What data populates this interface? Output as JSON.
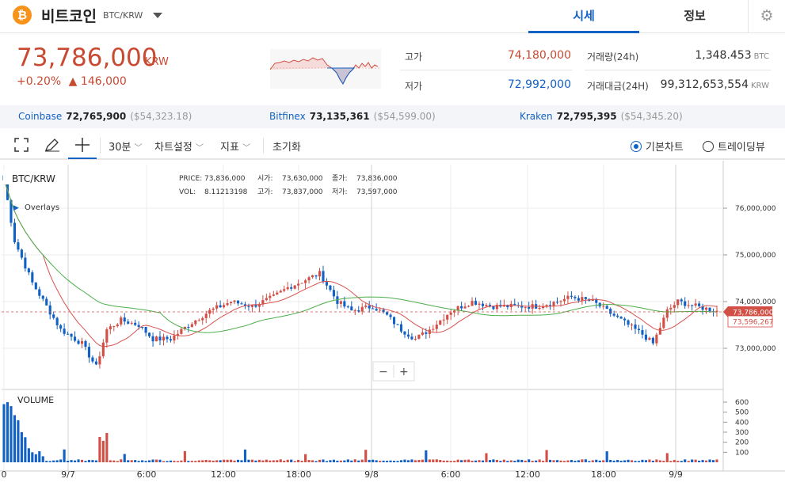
{
  "header": {
    "coin_name": "비트코인",
    "pair": "BTC/KRW",
    "tabs": [
      {
        "label": "시세",
        "active": true
      },
      {
        "label": "정보",
        "active": false
      }
    ],
    "settings_icon": "gear-icon",
    "logo_icon": "bitcoin-icon",
    "logo_glyph": "₿"
  },
  "ticker": {
    "price": "73,786,000",
    "unit": "KRW",
    "change_rate": "+0.20%",
    "change_arrow": "▲",
    "change_amount": "146,000",
    "high_label": "고가",
    "high_value": "74,180,000",
    "low_label": "저가",
    "low_value": "72,992,000",
    "volume_label": "거래량(24h)",
    "volume_value": "1,348.453",
    "volume_unit": "BTC",
    "amount_label": "거래대금(24H)",
    "amount_value": "99,312,653,554",
    "amount_unit": "KRW"
  },
  "exchanges": [
    {
      "name": "Coinbase",
      "price": "72,765,900",
      "usd": "($54,323.18)"
    },
    {
      "name": "Bitfinex",
      "price": "73,135,361",
      "usd": "($54,599.00)"
    },
    {
      "name": "Kraken",
      "price": "72,795,395",
      "usd": "($54,345.20)"
    }
  ],
  "toolbar": {
    "fullscreen_icon": "fullscreen-icon",
    "draw_icon": "pencil-icon",
    "crosshair_icon": "crosshair-icon",
    "interval": "30분",
    "chart_settings": "차트설정",
    "indicators": "지표",
    "reset": "초기화",
    "basic_chart": "기본차트",
    "tradingview": "트레이딩뷰",
    "selected_view": "기본차트"
  },
  "chart": {
    "symbol": "BTC/KRW",
    "overlays_label": "Overlays",
    "info": {
      "price_label": "PRICE:",
      "price": "73,836,000",
      "open_label": "시가:",
      "open": "73,630,000",
      "close_label": "종가:",
      "close": "73,836,000",
      "vol_label": "VOL:",
      "vol": "8.11213198",
      "high_label": "고가:",
      "high": "73,837,000",
      "low_label": "저가:",
      "low": "73,597,000"
    },
    "price_ticks": [
      {
        "value": 76000000,
        "label": "76,000,000"
      },
      {
        "value": 75000000,
        "label": "75,000,000"
      },
      {
        "value": 74000000,
        "label": "74,000,000"
      },
      {
        "value": 73000000,
        "label": "73,000,000"
      }
    ],
    "current_price_label": "73,786,000",
    "ma_price_label": "73,596,267",
    "volume_title": "VOLUME",
    "volume_ticks": [
      {
        "value": 600,
        "label": "600"
      },
      {
        "value": 500,
        "label": "500"
      },
      {
        "value": 400,
        "label": "400"
      },
      {
        "value": 300,
        "label": "300"
      },
      {
        "value": 200,
        "label": "200"
      },
      {
        "value": 100,
        "label": "100"
      }
    ],
    "time_ticks": [
      {
        "label": "0",
        "vline": false
      },
      {
        "label": "9/7",
        "vline": true
      },
      {
        "label": "6:00",
        "vline": false
      },
      {
        "label": "12:00",
        "vline": false
      },
      {
        "label": "18:00",
        "vline": false
      },
      {
        "label": "9/8",
        "vline": true
      },
      {
        "label": "6:00",
        "vline": false
      },
      {
        "label": "12:00",
        "vline": false
      },
      {
        "label": "18:00",
        "vline": false
      },
      {
        "label": "9/9",
        "vline": true
      }
    ],
    "zoom_out_label": "−",
    "zoom_in_label": "+",
    "colors": {
      "up": "#d24f45",
      "down": "#1261c4",
      "ma_fast": "#d9534f",
      "ma_slow": "#4cae4c",
      "grid": "#ececec"
    }
  }
}
